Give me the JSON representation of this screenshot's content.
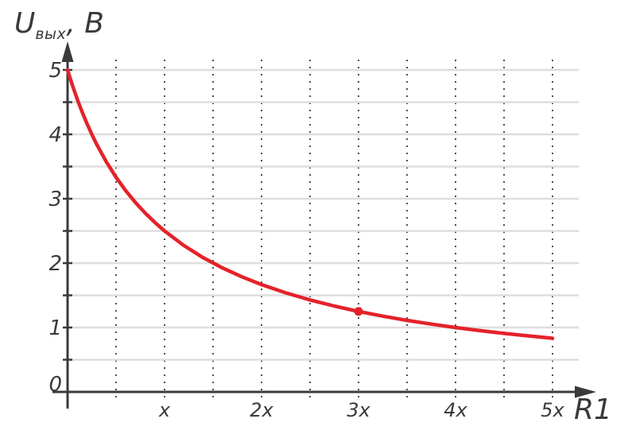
{
  "axis_titles": {
    "y_main": "U",
    "y_sub": "вых",
    "y_unit": ", В",
    "x": "R1"
  },
  "colors": {
    "curve": "#e4222a",
    "axis": "#3a3a3c",
    "text": "#3a3a3c",
    "grid_horizontal": "#dedede",
    "grid_vertical": "#4f4f4f"
  },
  "chart_data": {
    "type": "line",
    "title": "",
    "xlabel": "R1",
    "ylabel": "Uвых, В",
    "grid": "on",
    "x_axis": {
      "min": 0,
      "max": 5,
      "grid_step": 0.5,
      "unit_symbol": "x",
      "ticks": [
        {
          "label": "x",
          "value": 1
        },
        {
          "label": "2x",
          "value": 2
        },
        {
          "label": "3x",
          "value": 3
        },
        {
          "label": "4x",
          "value": 4
        },
        {
          "label": "5x",
          "value": 5
        }
      ]
    },
    "y_axis": {
      "min": 0,
      "max": 5,
      "grid_step": 0.5,
      "ticks": [
        {
          "label": "5",
          "value": 5,
          "dy": 0
        },
        {
          "label": "4",
          "value": 4,
          "dy": 0
        },
        {
          "label": "3",
          "value": 3,
          "dy": 0
        },
        {
          "label": "2",
          "value": 2,
          "dy": 0
        },
        {
          "label": "1",
          "value": 1,
          "dy": 0
        },
        {
          "label": "0",
          "value": 0,
          "dy": -10
        }
      ]
    },
    "series": [
      {
        "name": "output-voltage-vs-R1",
        "color": "#e4222a",
        "points": [
          [
            0,
            5
          ],
          [
            0.05,
            4.762
          ],
          [
            0.1,
            4.545
          ],
          [
            0.15,
            4.348
          ],
          [
            0.2,
            4.167
          ],
          [
            0.25,
            4.0
          ],
          [
            0.3,
            3.846
          ],
          [
            0.4,
            3.571
          ],
          [
            0.5,
            3.333
          ],
          [
            0.6,
            3.125
          ],
          [
            0.7,
            2.941
          ],
          [
            0.8,
            2.778
          ],
          [
            0.9,
            2.632
          ],
          [
            1,
            2.5
          ],
          [
            1.2,
            2.273
          ],
          [
            1.4,
            2.083
          ],
          [
            1.6,
            1.923
          ],
          [
            1.8,
            1.786
          ],
          [
            2,
            1.667
          ],
          [
            2.25,
            1.538
          ],
          [
            2.5,
            1.429
          ],
          [
            2.75,
            1.333
          ],
          [
            3,
            1.25
          ],
          [
            3.25,
            1.176
          ],
          [
            3.5,
            1.111
          ],
          [
            3.75,
            1.053
          ],
          [
            4,
            1.0
          ],
          [
            4.25,
            0.952
          ],
          [
            4.5,
            0.909
          ],
          [
            4.75,
            0.87
          ],
          [
            5,
            0.833
          ]
        ]
      }
    ],
    "marked_point": {
      "x": 3,
      "y": 1.25
    }
  }
}
